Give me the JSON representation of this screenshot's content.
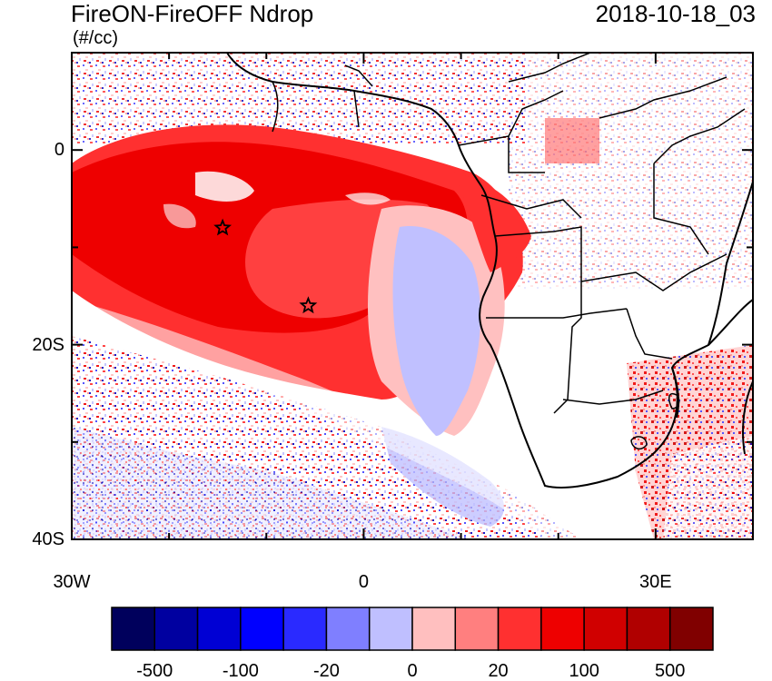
{
  "header": {
    "title": "FireON-FireOFF Ndrop",
    "units": "(#/cc)",
    "timestamp": "2018-10-18_03"
  },
  "axes": {
    "y_ticks": [
      {
        "value": 0,
        "label": "0"
      },
      {
        "value": -20,
        "label": "20S"
      },
      {
        "value": -40,
        "label": "40S"
      }
    ],
    "x_ticks": [
      {
        "value": -30,
        "label": "30W"
      },
      {
        "value": 0,
        "label": "0"
      },
      {
        "value": 30,
        "label": "30E"
      }
    ],
    "lon_range": [
      -30,
      40
    ],
    "lat_range": [
      -40,
      10
    ]
  },
  "markers": [
    {
      "name": "star-marker-north",
      "lon": -14.5,
      "lat": -8
    },
    {
      "name": "star-marker-south",
      "lon": -5.7,
      "lat": -16
    }
  ],
  "colorbar": {
    "colors": [
      "#00005c",
      "#0000a0",
      "#0000d4",
      "#0000ff",
      "#2a2aff",
      "#7f7fff",
      "#bfbfff",
      "#ffbfbf",
      "#ff7f7f",
      "#ff3030",
      "#ee0000",
      "#d00000",
      "#b00000",
      "#800000"
    ],
    "labels": [
      "-500",
      "-100",
      "-20",
      "0",
      "20",
      "100",
      "500"
    ]
  },
  "palette": {
    "deep_red": "#e80000",
    "red": "#ff2020",
    "mid_red": "#ff4040",
    "light_red": "#ff9090",
    "pink": "#ffc0c0",
    "light_blue": "#c0c0ff",
    "blue": "#4040ff",
    "dark_blue": "#0000c0"
  }
}
